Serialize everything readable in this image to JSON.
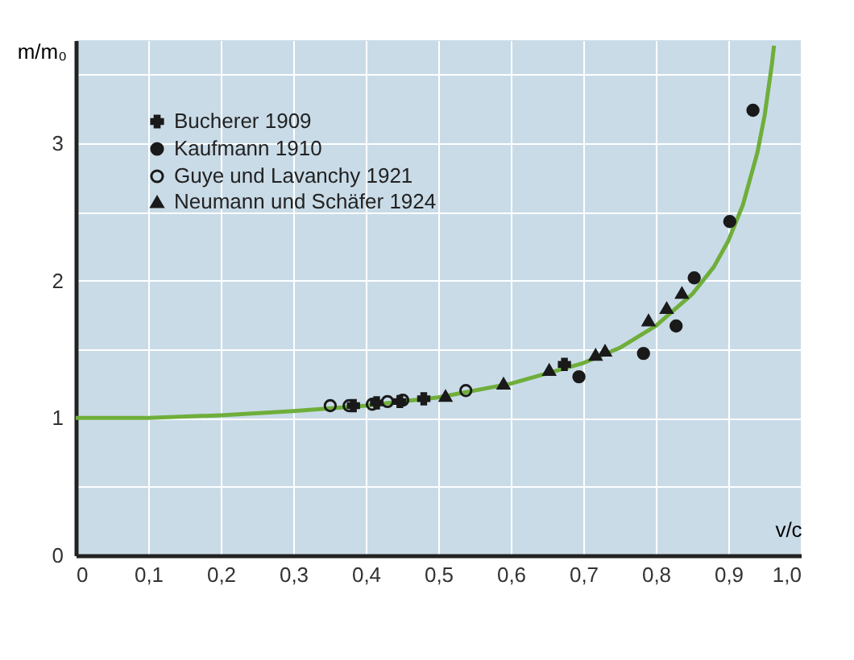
{
  "chart_data": {
    "type": "scatter",
    "xlabel": "v/c",
    "ylabel": "m/m₀",
    "xlim": [
      0,
      1.0
    ],
    "ylim": [
      0,
      3.75
    ],
    "xticks": [
      0,
      {
        "value": 0.1,
        "label": "0,1"
      },
      {
        "value": 0.2,
        "label": "0,2"
      },
      {
        "value": 0.3,
        "label": "0,3"
      },
      {
        "value": 0.4,
        "label": "0,4"
      },
      {
        "value": 0.5,
        "label": "0,5"
      },
      {
        "value": 0.6,
        "label": "0,6"
      },
      {
        "value": 0.7,
        "label": "0,7"
      },
      {
        "value": 0.8,
        "label": "0,8"
      },
      {
        "value": 0.9,
        "label": "0,9"
      },
      {
        "value": 1.0,
        "label": "1,0"
      }
    ],
    "yticks": [
      0,
      {
        "value": 0.5,
        "label": null
      },
      1,
      {
        "value": 1.5,
        "label": null
      },
      2,
      {
        "value": 2.5,
        "label": null
      },
      3,
      {
        "value": 3.5,
        "label": null
      }
    ],
    "grid": true,
    "legend": "top left",
    "series": [
      {
        "name": "Bucherer 1909",
        "color": "#1a1a1a",
        "marker": "cross",
        "x": [
          0.383,
          0.415,
          0.447,
          0.48,
          0.674
        ],
        "values": [
          1.09,
          1.11,
          1.12,
          1.14,
          1.39
        ]
      },
      {
        "name": "Kaufmann 1910",
        "color": "#1a1a1a",
        "marker": "circle",
        "x": [
          0.694,
          0.783,
          0.828,
          0.853,
          0.902,
          0.934
        ],
        "values": [
          1.3,
          1.47,
          1.67,
          2.02,
          2.43,
          3.24
        ]
      },
      {
        "name": "Guye und Lavanchy 1921",
        "color": "#1a1a1a",
        "marker": "circle_open",
        "x": [
          0.351,
          0.377,
          0.409,
          0.43,
          0.451,
          0.538
        ],
        "values": [
          1.09,
          1.09,
          1.1,
          1.12,
          1.13,
          1.2
        ]
      },
      {
        "name": "Neumann und Schäfer 1924",
        "color": "#1a1a1a",
        "marker": "triangle",
        "x": [
          0.51,
          0.59,
          0.653,
          0.717,
          0.73,
          0.79,
          0.815,
          0.836
        ],
        "values": [
          1.16,
          1.25,
          1.35,
          1.46,
          1.49,
          1.71,
          1.8,
          1.91
        ]
      },
      {
        "type": "line",
        "color": "#6fae3a",
        "marker": "none",
        "line_style": "solid",
        "x": [
          0,
          0.1,
          0.2,
          0.3,
          0.4,
          0.5,
          0.6,
          0.7,
          0.75,
          0.8,
          0.85,
          0.88,
          0.9,
          0.92,
          0.94,
          0.95,
          0.96,
          0.963
        ],
        "values": [
          1,
          1.0,
          1.02,
          1.05,
          1.09,
          1.15,
          1.25,
          1.4,
          1.51,
          1.67,
          1.9,
          2.1,
          2.29,
          2.55,
          2.93,
          3.2,
          3.57,
          3.71
        ]
      }
    ]
  }
}
